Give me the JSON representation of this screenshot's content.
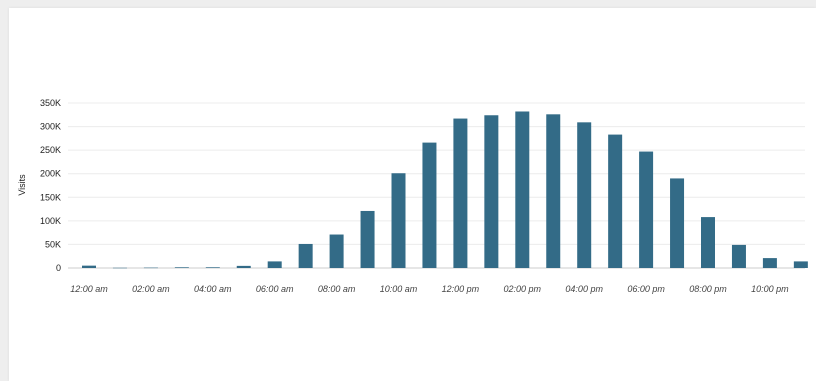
{
  "chart_data": {
    "type": "bar",
    "ylabel": "Visits",
    "xlabel": "",
    "ylim": [
      0,
      350000
    ],
    "yticks": [
      0,
      50000,
      100000,
      150000,
      200000,
      250000,
      300000,
      350000
    ],
    "ytick_labels": [
      "0",
      "50K",
      "100K",
      "150K",
      "200K",
      "250K",
      "300K",
      "350K"
    ],
    "categories": [
      "12:00 am",
      "01:00 am",
      "02:00 am",
      "03:00 am",
      "04:00 am",
      "05:00 am",
      "06:00 am",
      "07:00 am",
      "08:00 am",
      "09:00 am",
      "10:00 am",
      "11:00 am",
      "12:00 pm",
      "01:00 pm",
      "02:00 pm",
      "03:00 pm",
      "04:00 pm",
      "05:00 pm",
      "06:00 pm",
      "07:00 pm",
      "08:00 pm",
      "09:00 pm",
      "10:00 pm",
      "11:00 pm"
    ],
    "xtick_labels": [
      "12:00 am",
      "",
      "02:00 am",
      "",
      "04:00 am",
      "",
      "06:00 am",
      "",
      "08:00 am",
      "",
      "10:00 am",
      "",
      "12:00 pm",
      "",
      "02:00 pm",
      "",
      "04:00 pm",
      "",
      "06:00 pm",
      "",
      "08:00 pm",
      "",
      "10:00 pm",
      ""
    ],
    "values": [
      5000,
      500,
      800,
      1500,
      1500,
      4500,
      14000,
      51000,
      71000,
      121000,
      201000,
      266000,
      317000,
      324000,
      332000,
      326000,
      309000,
      283000,
      247000,
      190000,
      108000,
      49000,
      21000,
      14000
    ],
    "bar_color": "#336b87",
    "grid": true
  }
}
